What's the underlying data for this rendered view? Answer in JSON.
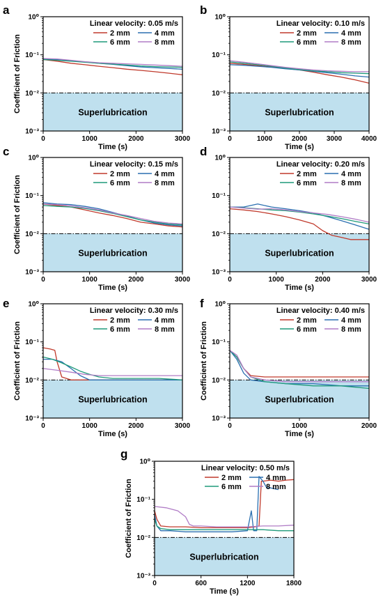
{
  "chart_data": [
    {
      "panel": "a",
      "type": "line",
      "xlabel": "Time (s)",
      "ylabel": "Coefficient of Friction",
      "xlim": [
        0,
        3000
      ],
      "ylim": [
        0.001,
        1
      ],
      "yscale": "log",
      "xticks": [
        "0",
        "1000",
        "2000",
        "3000"
      ],
      "yticks": [
        "10⁰",
        "10⁻¹",
        "10⁻²",
        "10⁻³"
      ],
      "velocity_label": "Linear velocity: 0.05 m/s",
      "threshold": 0.01,
      "region_label": "Superlubrication",
      "series": [
        {
          "name": "2 mm",
          "color": "#c0392b",
          "x": [
            0,
            300,
            600,
            900,
            1200,
            1500,
            1800,
            2100,
            2400,
            2700,
            3000
          ],
          "y": [
            0.075,
            0.068,
            0.06,
            0.055,
            0.05,
            0.046,
            0.042,
            0.039,
            0.036,
            0.033,
            0.03
          ]
        },
        {
          "name": "4 mm",
          "color": "#2a6fb0",
          "x": [
            0,
            300,
            600,
            900,
            1200,
            1500,
            1800,
            2100,
            2400,
            2700,
            3000
          ],
          "y": [
            0.078,
            0.075,
            0.07,
            0.065,
            0.06,
            0.056,
            0.052,
            0.048,
            0.046,
            0.044,
            0.042
          ]
        },
        {
          "name": "6 mm",
          "color": "#1e9a7a",
          "x": [
            0,
            300,
            600,
            900,
            1200,
            1500,
            1800,
            2100,
            2400,
            2700,
            3000
          ],
          "y": [
            0.075,
            0.072,
            0.068,
            0.064,
            0.06,
            0.057,
            0.054,
            0.051,
            0.049,
            0.048,
            0.047
          ]
        },
        {
          "name": "8 mm",
          "color": "#b07cc6",
          "x": [
            0,
            300,
            600,
            900,
            1200,
            1500,
            1800,
            2100,
            2400,
            2700,
            3000
          ],
          "y": [
            0.08,
            0.078,
            0.072,
            0.066,
            0.062,
            0.06,
            0.058,
            0.056,
            0.054,
            0.052,
            0.05
          ]
        }
      ]
    },
    {
      "panel": "b",
      "type": "line",
      "xlabel": "Time (s)",
      "ylabel": "",
      "xlim": [
        0,
        4000
      ],
      "ylim": [
        0.001,
        1
      ],
      "yscale": "log",
      "xticks": [
        "0",
        "1000",
        "2000",
        "3000",
        "4000"
      ],
      "yticks": [
        "10⁰",
        "10⁻¹",
        "10⁻²",
        "10⁻³"
      ],
      "velocity_label": "Linear velocity: 0.10 m/s",
      "threshold": 0.01,
      "region_label": "Superlubrication",
      "series": [
        {
          "name": "2 mm",
          "color": "#c0392b",
          "x": [
            0,
            400,
            800,
            1200,
            1600,
            2000,
            2400,
            2800,
            3200,
            3600,
            4000
          ],
          "y": [
            0.06,
            0.056,
            0.052,
            0.048,
            0.044,
            0.04,
            0.035,
            0.03,
            0.026,
            0.022,
            0.018
          ]
        },
        {
          "name": "4 mm",
          "color": "#2a6fb0",
          "x": [
            0,
            400,
            800,
            1200,
            1600,
            2000,
            2400,
            2800,
            3200,
            3600,
            4000
          ],
          "y": [
            0.055,
            0.053,
            0.05,
            0.047,
            0.043,
            0.04,
            0.037,
            0.034,
            0.031,
            0.028,
            0.026
          ]
        },
        {
          "name": "6 mm",
          "color": "#1e9a7a",
          "x": [
            0,
            400,
            800,
            1200,
            1600,
            2000,
            2400,
            2800,
            3200,
            3600,
            4000
          ],
          "y": [
            0.065,
            0.06,
            0.055,
            0.05,
            0.045,
            0.041,
            0.038,
            0.036,
            0.034,
            0.033,
            0.032
          ]
        },
        {
          "name": "8 mm",
          "color": "#b07cc6",
          "x": [
            0,
            400,
            800,
            1200,
            1600,
            2000,
            2400,
            2800,
            3200,
            3600,
            4000
          ],
          "y": [
            0.07,
            0.064,
            0.058,
            0.052,
            0.047,
            0.043,
            0.04,
            0.038,
            0.037,
            0.036,
            0.036
          ]
        }
      ]
    },
    {
      "panel": "c",
      "type": "line",
      "xlabel": "Time (s)",
      "ylabel": "Coefficient of Friction",
      "xlim": [
        0,
        3000
      ],
      "ylim": [
        0.001,
        1
      ],
      "yscale": "log",
      "xticks": [
        "0",
        "1000",
        "2000",
        "3000"
      ],
      "yticks": [
        "10⁰",
        "10⁻¹",
        "10⁻²",
        "10⁻³"
      ],
      "velocity_label": "Linear velocity: 0.15 m/s",
      "threshold": 0.01,
      "region_label": "Superlubrication",
      "series": [
        {
          "name": "2 mm",
          "color": "#c0392b",
          "x": [
            0,
            300,
            600,
            900,
            1200,
            1500,
            1800,
            2100,
            2400,
            2700,
            3000
          ],
          "y": [
            0.06,
            0.055,
            0.05,
            0.042,
            0.035,
            0.03,
            0.025,
            0.02,
            0.018,
            0.016,
            0.015
          ]
        },
        {
          "name": "4 mm",
          "color": "#2a6fb0",
          "x": [
            0,
            300,
            600,
            900,
            1200,
            1500,
            1800,
            2100,
            2400,
            2700,
            3000
          ],
          "y": [
            0.065,
            0.06,
            0.058,
            0.052,
            0.045,
            0.036,
            0.029,
            0.023,
            0.019,
            0.017,
            0.016
          ]
        },
        {
          "name": "6 mm",
          "color": "#1e9a7a",
          "x": [
            0,
            300,
            600,
            900,
            1200,
            1500,
            1800,
            2100,
            2400,
            2700,
            3000
          ],
          "y": [
            0.055,
            0.052,
            0.05,
            0.046,
            0.04,
            0.034,
            0.028,
            0.023,
            0.02,
            0.018,
            0.017
          ]
        },
        {
          "name": "8 mm",
          "color": "#b07cc6",
          "x": [
            0,
            300,
            600,
            900,
            1200,
            1500,
            1800,
            2100,
            2400,
            2700,
            3000
          ],
          "y": [
            0.06,
            0.058,
            0.054,
            0.048,
            0.042,
            0.035,
            0.03,
            0.025,
            0.021,
            0.019,
            0.018
          ]
        }
      ]
    },
    {
      "panel": "d",
      "type": "line",
      "xlabel": "Time (s)",
      "ylabel": "",
      "xlim": [
        0,
        3000
      ],
      "ylim": [
        0.001,
        1
      ],
      "yscale": "log",
      "xticks": [
        "0",
        "1000",
        "2000",
        "3000"
      ],
      "yticks": [
        "10⁰",
        "10⁻¹",
        "10⁻²",
        "10⁻³"
      ],
      "velocity_label": "Linear velocity: 0.20 m/s",
      "threshold": 0.01,
      "region_label": "Superlubrication",
      "series": [
        {
          "name": "2 mm",
          "color": "#c0392b",
          "x": [
            0,
            300,
            600,
            900,
            1200,
            1500,
            1800,
            2000,
            2200,
            2400,
            2600,
            2800,
            3000
          ],
          "y": [
            0.045,
            0.042,
            0.038,
            0.033,
            0.028,
            0.023,
            0.018,
            0.012,
            0.009,
            0.008,
            0.007,
            0.007,
            0.007
          ]
        },
        {
          "name": "4 mm",
          "color": "#2a6fb0",
          "x": [
            0,
            300,
            600,
            900,
            1200,
            1500,
            1800,
            2100,
            2400,
            2700,
            3000
          ],
          "y": [
            0.05,
            0.05,
            0.06,
            0.05,
            0.045,
            0.04,
            0.035,
            0.028,
            0.022,
            0.017,
            0.013
          ]
        },
        {
          "name": "6 mm",
          "color": "#1e9a7a",
          "x": [
            0,
            300,
            600,
            900,
            1200,
            1500,
            1800,
            2100,
            2400,
            2700,
            3000
          ],
          "y": [
            0.05,
            0.048,
            0.045,
            0.042,
            0.04,
            0.037,
            0.033,
            0.029,
            0.025,
            0.021,
            0.018
          ]
        },
        {
          "name": "8 mm",
          "color": "#b07cc6",
          "x": [
            0,
            300,
            600,
            900,
            1200,
            1500,
            1800,
            2100,
            2400,
            2700,
            3000
          ],
          "y": [
            0.05,
            0.047,
            0.044,
            0.045,
            0.042,
            0.038,
            0.035,
            0.032,
            0.028,
            0.024,
            0.02
          ]
        }
      ]
    },
    {
      "panel": "e",
      "type": "line",
      "xlabel": "Time (s)",
      "ylabel": "Coefficient of Friction",
      "xlim": [
        0,
        3000
      ],
      "ylim": [
        0.001,
        1
      ],
      "yscale": "log",
      "xticks": [
        "0",
        "1000",
        "2000",
        "3000"
      ],
      "yticks": [
        "10⁰",
        "10⁻¹",
        "10⁻²",
        "10⁻³"
      ],
      "velocity_label": "Linear velocity: 0.30 m/s",
      "threshold": 0.01,
      "region_label": "Superlubrication",
      "series": [
        {
          "name": "2 mm",
          "color": "#c0392b",
          "x": [
            0,
            150,
            250,
            300,
            400,
            600,
            1000,
            1500,
            2000,
            2500,
            3000
          ],
          "y": [
            0.07,
            0.065,
            0.06,
            0.03,
            0.012,
            0.01,
            0.01,
            0.01,
            0.01,
            0.01,
            0.01
          ]
        },
        {
          "name": "4 mm",
          "color": "#2a6fb0",
          "x": [
            0,
            200,
            400,
            600,
            800,
            1000,
            1200,
            1500,
            2000,
            2500,
            3000
          ],
          "y": [
            0.035,
            0.035,
            0.03,
            0.02,
            0.013,
            0.01,
            0.01,
            0.01,
            0.01,
            0.01,
            0.01
          ]
        },
        {
          "name": "6 mm",
          "color": "#1e9a7a",
          "x": [
            0,
            200,
            400,
            600,
            800,
            1000,
            1200,
            1500,
            2000,
            2500,
            3000
          ],
          "y": [
            0.04,
            0.035,
            0.028,
            0.022,
            0.017,
            0.014,
            0.012,
            0.011,
            0.011,
            0.011,
            0.01
          ]
        },
        {
          "name": "8 mm",
          "color": "#b07cc6",
          "x": [
            0,
            300,
            600,
            900,
            1200,
            1500,
            1800,
            2100,
            2400,
            2700,
            3000
          ],
          "y": [
            0.02,
            0.018,
            0.016,
            0.014,
            0.013,
            0.013,
            0.013,
            0.013,
            0.013,
            0.013,
            0.013
          ]
        }
      ]
    },
    {
      "panel": "f",
      "type": "line",
      "xlabel": "Time (s)",
      "ylabel": "Coefficient of Friction",
      "xlim": [
        0,
        2000
      ],
      "ylim": [
        0.001,
        1
      ],
      "yscale": "log",
      "xticks": [
        "0",
        "1000",
        "2000"
      ],
      "yticks": [
        "10⁰",
        "10⁻¹",
        "10⁻²",
        "10⁻³"
      ],
      "velocity_label": "Linear velocity: 0.40 m/s",
      "threshold": 0.01,
      "region_label": "Superlubrication",
      "series": [
        {
          "name": "2 mm",
          "color": "#c0392b",
          "x": [
            0,
            100,
            200,
            300,
            500,
            800,
            1200,
            1600,
            2000
          ],
          "y": [
            0.06,
            0.04,
            0.02,
            0.013,
            0.012,
            0.012,
            0.012,
            0.012,
            0.012
          ]
        },
        {
          "name": "4 mm",
          "color": "#2a6fb0",
          "x": [
            0,
            100,
            200,
            300,
            500,
            800,
            1200,
            1600,
            2000
          ],
          "y": [
            0.06,
            0.035,
            0.015,
            0.01,
            0.009,
            0.008,
            0.008,
            0.007,
            0.007
          ]
        },
        {
          "name": "6 mm",
          "color": "#1e9a7a",
          "x": [
            0,
            100,
            200,
            300,
            500,
            800,
            1200,
            1600,
            2000
          ],
          "y": [
            0.06,
            0.04,
            0.02,
            0.012,
            0.009,
            0.008,
            0.007,
            0.007,
            0.006
          ]
        },
        {
          "name": "8 mm",
          "color": "#b07cc6",
          "x": [
            0,
            100,
            200,
            300,
            500,
            800,
            1200,
            1600,
            2000
          ],
          "y": [
            0.06,
            0.045,
            0.02,
            0.012,
            0.01,
            0.009,
            0.009,
            0.009,
            0.009
          ]
        }
      ]
    },
    {
      "panel": "g",
      "type": "line",
      "xlabel": "Time (s)",
      "ylabel": "Coefficient of Friction",
      "xlim": [
        0,
        1800
      ],
      "ylim": [
        0.001,
        1
      ],
      "yscale": "log",
      "xticks": [
        "0",
        "600",
        "1200",
        "1800"
      ],
      "yticks": [
        "10⁰",
        "10⁻¹",
        "10⁻²",
        "10⁻³"
      ],
      "velocity_label": "Linear velocity: 0.50 m/s",
      "threshold": 0.01,
      "region_label": "Superlubrication",
      "series": [
        {
          "name": "2 mm",
          "color": "#c0392b",
          "x": [
            0,
            30,
            80,
            200,
            400,
            600,
            800,
            1000,
            1200,
            1300,
            1350,
            1380,
            1400,
            1500,
            1600,
            1700,
            1800
          ],
          "y": [
            0.05,
            0.03,
            0.02,
            0.019,
            0.019,
            0.018,
            0.018,
            0.018,
            0.018,
            0.019,
            0.02,
            0.3,
            0.3,
            0.32,
            0.3,
            0.32,
            0.33
          ]
        },
        {
          "name": "4 mm",
          "color": "#2a6fb0",
          "x": [
            0,
            30,
            80,
            200,
            400,
            600,
            800,
            1000,
            1200,
            1250,
            1280,
            1320,
            1350,
            1400,
            1450,
            1500,
            1600
          ],
          "y": [
            0.04,
            0.02,
            0.015,
            0.015,
            0.014,
            0.014,
            0.014,
            0.014,
            0.015,
            0.05,
            0.015,
            0.015,
            0.4,
            0.3,
            0.2,
            0.2,
            0.18
          ]
        },
        {
          "name": "6 mm",
          "color": "#1e9a7a",
          "x": [
            0,
            30,
            80,
            200,
            400,
            600,
            800,
            1000,
            1200,
            1400,
            1600,
            1800
          ],
          "y": [
            0.03,
            0.02,
            0.017,
            0.016,
            0.016,
            0.016,
            0.016,
            0.016,
            0.016,
            0.016,
            0.015,
            0.015
          ]
        },
        {
          "name": "8 mm",
          "color": "#b07cc6",
          "x": [
            0,
            150,
            300,
            400,
            450,
            500,
            600,
            800,
            1000,
            1200,
            1400,
            1600,
            1800
          ],
          "y": [
            0.065,
            0.06,
            0.05,
            0.035,
            0.022,
            0.02,
            0.02,
            0.019,
            0.019,
            0.019,
            0.02,
            0.02,
            0.021
          ]
        }
      ]
    }
  ]
}
